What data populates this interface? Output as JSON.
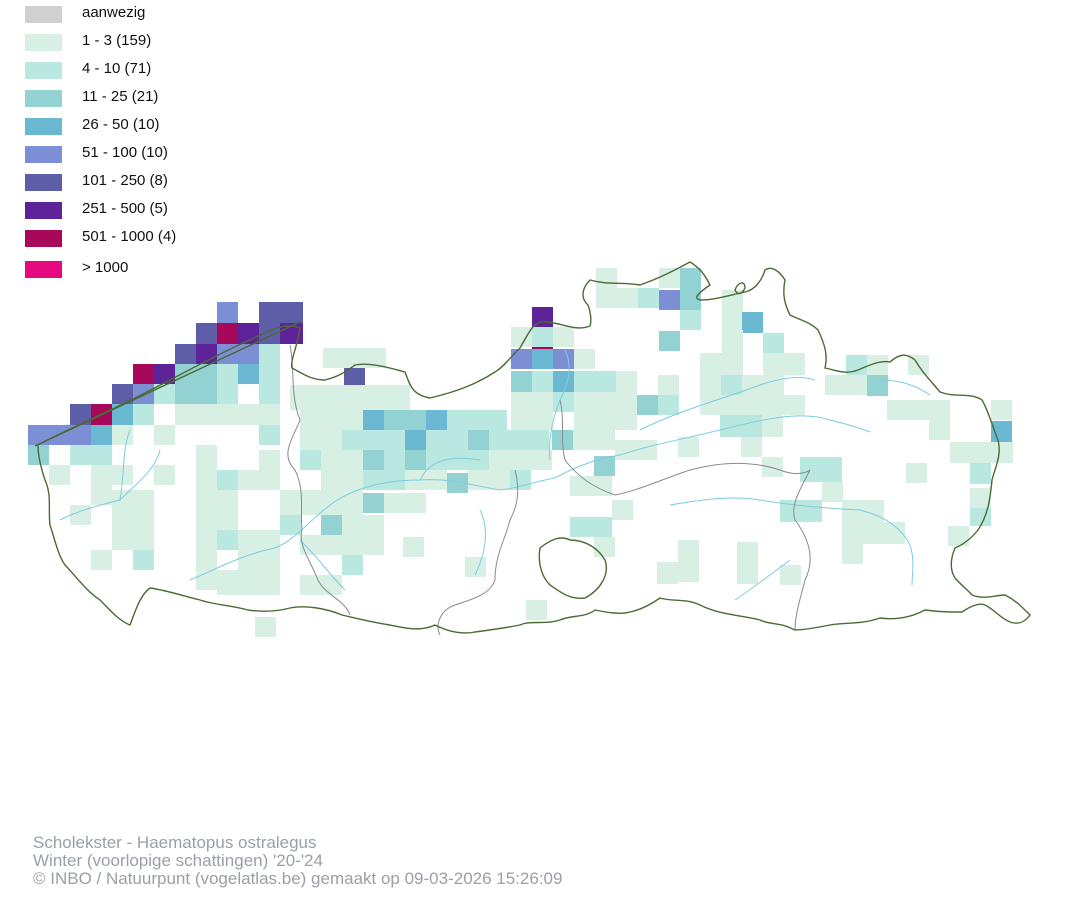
{
  "legend": {
    "items": [
      {
        "label": "aanwezig",
        "color": "#d0d0d0"
      },
      {
        "label": "1 - 3 (159)",
        "color": "#d7f0e3"
      },
      {
        "label": "4 - 10 (71)",
        "color": "#b8e8df"
      },
      {
        "label": "11 - 25 (21)",
        "color": "#93d2d3"
      },
      {
        "label": "26 - 50 (10)",
        "color": "#6bb8d2"
      },
      {
        "label": "51 - 100 (10)",
        "color": "#7d8fd4"
      },
      {
        "label": "101 - 250 (8)",
        "color": "#5e5ea8"
      },
      {
        "label": "251 - 500 (5)",
        "color": "#5f2399"
      },
      {
        "label": "501 - 1000 (4)",
        "color": "#a8085a"
      },
      {
        "label": "> 1000",
        "color": "#e5097f"
      }
    ]
  },
  "map": {
    "border_color": "#4a6b35",
    "province_border_color": "#8a8a8a",
    "river_color": "#7ecbe0"
  },
  "footer": {
    "species": "Scholekster - Haematopus ostralegus",
    "period": "Winter (voorlopige schattingen) '20-'24",
    "credit": "© INBO / Natuurpunt (vogelatlas.be) gemaakt op 09-03-2026 15:26:09"
  }
}
